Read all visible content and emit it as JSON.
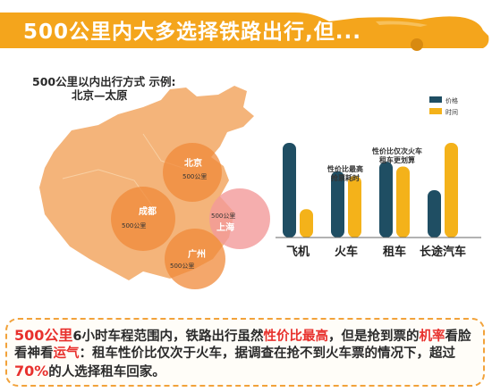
{
  "banner": {
    "title": "500公里内大多选择铁路出行,但..."
  },
  "map": {
    "title_line1": "500公里以内出行方式 示例:",
    "title_line2": "北京—太原",
    "cities": [
      {
        "name": "北京",
        "radius_label": "500公里"
      },
      {
        "name": "成都",
        "radius_label": "500公里"
      },
      {
        "name": "上海",
        "radius_label": "500公里"
      },
      {
        "name": "广州",
        "radius_label": "500公里"
      }
    ],
    "colors": {
      "land": "#f4b47a",
      "circle": "#f08a3a",
      "circle_sh": "#f39a9a"
    }
  },
  "chart_data": {
    "type": "bar",
    "categories": [
      "飞机",
      "火车",
      "租车",
      "长途汽车"
    ],
    "series": [
      {
        "name": "价格",
        "values": [
          10,
          7,
          8,
          5
        ],
        "color": "#1f4e63"
      },
      {
        "name": "时间",
        "values": [
          3,
          6.5,
          7.5,
          10
        ],
        "color": "#f4b21a"
      }
    ],
    "ylim": [
      0,
      11
    ],
    "annotations": [
      {
        "text_line1": "性价比最高",
        "text_line2": "抢票耗时",
        "category": "火车"
      },
      {
        "text_line1": "性价比仅次火车",
        "text_line2": "租车更划算",
        "category": "租车"
      }
    ],
    "legend_position": "top-right"
  },
  "note": {
    "p1": "500公里",
    "p2": "6小时车程范围内，铁路出行虽然",
    "p3": "性价比最高",
    "p4": "，但是抢到票的",
    "p5": "机率",
    "p6": "看脸看神看",
    "p7": "运气",
    "p8": "：租车性价比仅次于火车，据调查在抢不到火车票的情况下，超过",
    "p9": "70%",
    "p10": "的人选择租车回家。"
  },
  "colors": {
    "banner": "#f4a51c",
    "accent_red": "#e8312d",
    "dash": "#f2a23a"
  }
}
